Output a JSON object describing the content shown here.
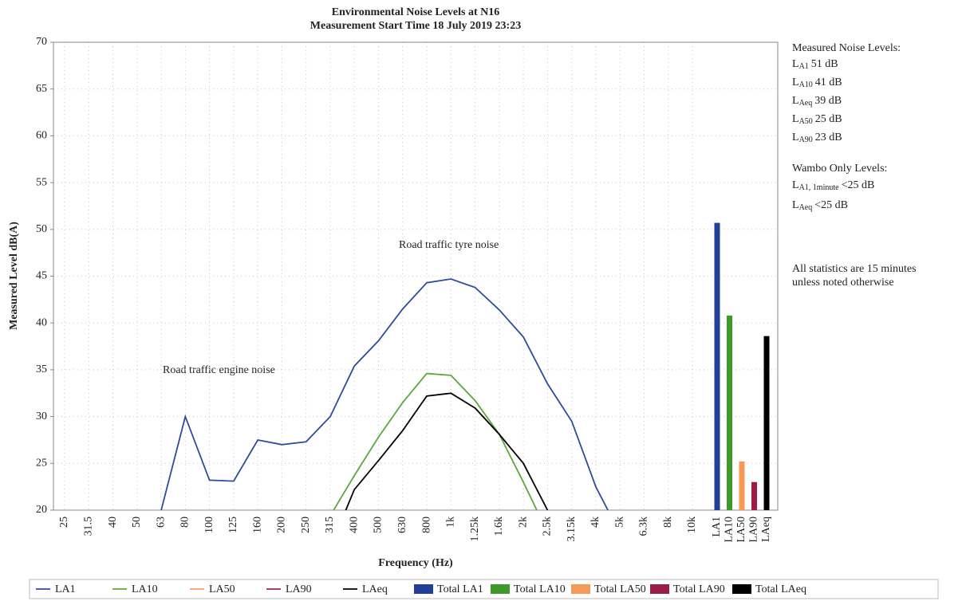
{
  "chart_data": {
    "type": "line",
    "title": "Environmental Noise Levels at N16",
    "subtitle": "Measurement Start Time 18 July 2019 23:23",
    "x_label": "Frequency (Hz)",
    "y_label": "Measured Level dB(A)",
    "categories": [
      "25",
      "31.5",
      "40",
      "50",
      "63",
      "80",
      "100",
      "125",
      "160",
      "200",
      "250",
      "315",
      "400",
      "500",
      "630",
      "800",
      "1k",
      "1.25k",
      "1.6k",
      "2k",
      "2.5k",
      "3.15k",
      "4k",
      "5k",
      "6.3k",
      "8k",
      "10k",
      "LA1",
      "LA10",
      "LA50",
      "LA90",
      "LAeq"
    ],
    "ylim": [
      20,
      70
    ],
    "yticks": [
      20,
      25,
      30,
      35,
      40,
      45,
      50,
      55,
      60,
      65,
      70
    ],
    "grid": true,
    "series": [
      {
        "name": "LA1",
        "type": "line",
        "color": "#2e4c9c",
        "values": [
          null,
          null,
          null,
          null,
          20,
          30,
          23.2,
          23.1,
          27.5,
          27,
          27.3,
          30,
          35.4,
          38.1,
          41.5,
          44.3,
          44.7,
          43.8,
          41.4,
          38.5,
          33.5,
          29.5,
          22.5,
          17.5,
          null,
          null,
          null,
          null,
          null,
          null,
          null,
          null
        ]
      },
      {
        "name": "LA10",
        "type": "line",
        "color": "#59a83d",
        "values": [
          null,
          null,
          null,
          null,
          null,
          null,
          null,
          null,
          null,
          null,
          null,
          19.4,
          23.7,
          27.8,
          31.5,
          34.6,
          34.4,
          31.7,
          28.1,
          23,
          17.6,
          null,
          null,
          null,
          null,
          null,
          null,
          null,
          null,
          null,
          null,
          null
        ]
      },
      {
        "name": "LA50",
        "type": "line",
        "color": "#f5a06a",
        "values": [
          null,
          null,
          null,
          null,
          null,
          null,
          null,
          null,
          null,
          null,
          null,
          null,
          null,
          null,
          null,
          null,
          null,
          null,
          null,
          null,
          null,
          null,
          null,
          null,
          null,
          null,
          null,
          null,
          null,
          null,
          null,
          null
        ]
      },
      {
        "name": "LA90",
        "type": "line",
        "color": "#9b2a55",
        "values": [
          null,
          null,
          null,
          null,
          null,
          null,
          null,
          null,
          null,
          null,
          null,
          null,
          null,
          null,
          null,
          null,
          null,
          null,
          null,
          null,
          null,
          null,
          null,
          null,
          null,
          null,
          null,
          null,
          null,
          null,
          null,
          null
        ]
      },
      {
        "name": "LAeq",
        "type": "line",
        "color": "#000000",
        "values": [
          null,
          null,
          null,
          null,
          null,
          null,
          null,
          null,
          null,
          null,
          null,
          16,
          22.2,
          25.3,
          28.5,
          32.2,
          32.5,
          30.9,
          28.1,
          25,
          20,
          null,
          null,
          null,
          null,
          null,
          null,
          null,
          null,
          null,
          null,
          null
        ]
      },
      {
        "name": "Total LA1",
        "type": "bar",
        "color": "#1f3f99",
        "values": [
          null,
          null,
          null,
          null,
          null,
          null,
          null,
          null,
          null,
          null,
          null,
          null,
          null,
          null,
          null,
          null,
          null,
          null,
          null,
          null,
          null,
          null,
          null,
          null,
          null,
          null,
          null,
          50.7,
          null,
          null,
          null,
          null
        ]
      },
      {
        "name": "Total LA10",
        "type": "bar",
        "color": "#3d9a2a",
        "values": [
          null,
          null,
          null,
          null,
          null,
          null,
          null,
          null,
          null,
          null,
          null,
          null,
          null,
          null,
          null,
          null,
          null,
          null,
          null,
          null,
          null,
          null,
          null,
          null,
          null,
          null,
          null,
          null,
          40.8,
          null,
          null,
          null
        ]
      },
      {
        "name": "Total LA50",
        "type": "bar",
        "color": "#f79a56",
        "values": [
          null,
          null,
          null,
          null,
          null,
          null,
          null,
          null,
          null,
          null,
          null,
          null,
          null,
          null,
          null,
          null,
          null,
          null,
          null,
          null,
          null,
          null,
          null,
          null,
          null,
          null,
          null,
          null,
          null,
          25.2,
          null,
          null
        ]
      },
      {
        "name": "Total LA90",
        "type": "bar",
        "color": "#9b1c44",
        "values": [
          null,
          null,
          null,
          null,
          null,
          null,
          null,
          null,
          null,
          null,
          null,
          null,
          null,
          null,
          null,
          null,
          null,
          null,
          null,
          null,
          null,
          null,
          null,
          null,
          null,
          null,
          null,
          null,
          null,
          null,
          23,
          null
        ]
      },
      {
        "name": "Total LAeq",
        "type": "bar",
        "color": "#000000",
        "values": [
          null,
          null,
          null,
          null,
          null,
          null,
          null,
          null,
          null,
          null,
          null,
          null,
          null,
          null,
          null,
          null,
          null,
          null,
          null,
          null,
          null,
          null,
          null,
          null,
          null,
          null,
          null,
          null,
          null,
          null,
          null,
          38.6
        ]
      }
    ],
    "annotations": [
      "Road traffic tyre noise",
      "Road traffic engine noise"
    ],
    "notes": {
      "measured_heading": "Measured Noise Levels:",
      "measured": [
        {
          "base": "L",
          "sub": "A1",
          "text": "51 dB"
        },
        {
          "base": "L",
          "sub": "A10",
          "text": "41 dB"
        },
        {
          "base": "L",
          "sub": "Aeq",
          "text": "39 dB"
        },
        {
          "base": "L",
          "sub": "A50",
          "text": "25 dB"
        },
        {
          "base": "L",
          "sub": "A90",
          "text": "23 dB"
        }
      ],
      "wambo_heading": "Wambo Only Levels:",
      "wambo": [
        {
          "base": "L",
          "sub": "A1, 1minute",
          "text": "<25 dB"
        },
        {
          "base": "L",
          "sub": "Aeq",
          "text": "<25 dB"
        }
      ],
      "footnote": [
        "All statistics are 15 minutes",
        "unless noted otherwise"
      ]
    }
  }
}
